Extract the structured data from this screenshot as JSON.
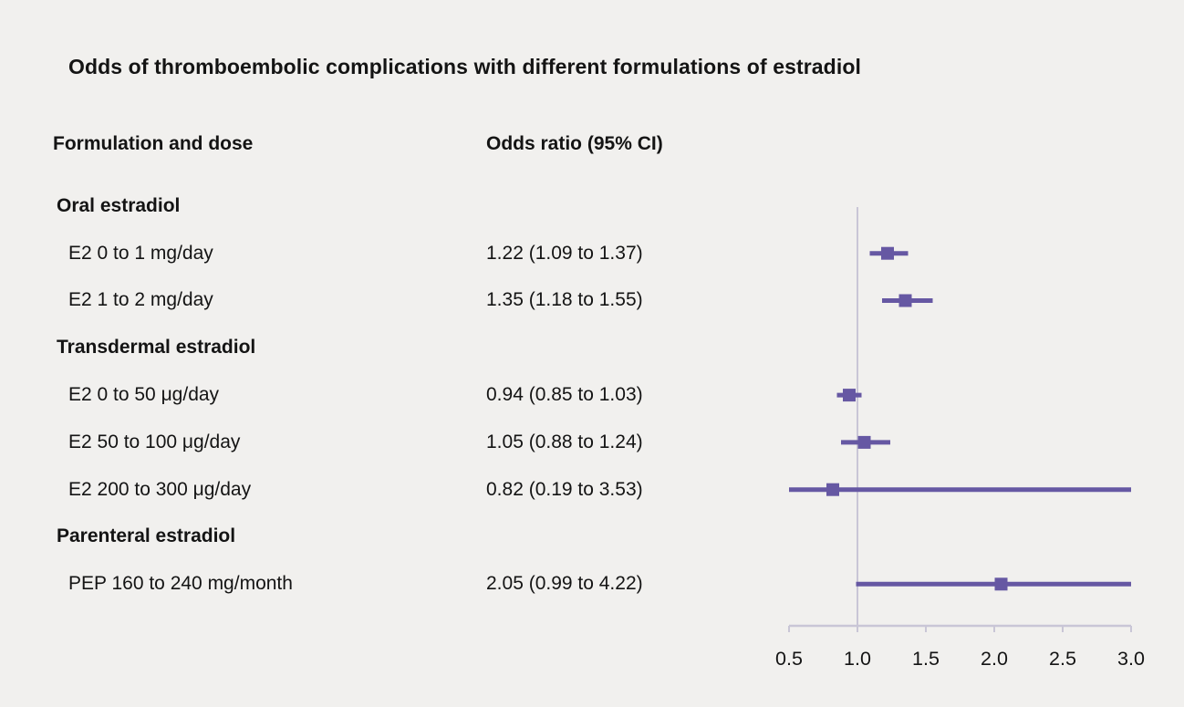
{
  "title": "Odds of thromboembolic complications with different formulations of estradiol",
  "columns": {
    "formulation": "Formulation and dose",
    "odds_ratio": "Odds ratio (95% CI)"
  },
  "chart_data": {
    "type": "forest",
    "title": "Odds of thromboembolic complications with different formulations of estradiol",
    "xlabel": "Odds ratio (95% CI)",
    "xlim": [
      0.5,
      3.0
    ],
    "axis": {
      "min": 0.5,
      "max": 3.0,
      "reference": 1.0,
      "ticks": [
        0.5,
        1.0,
        1.5,
        2.0,
        2.5,
        3.0
      ],
      "tick_labels": [
        "0.5",
        "1.0",
        "1.5",
        "2.0",
        "2.5",
        "3.0"
      ]
    },
    "rows": [
      {
        "type": "group",
        "label": "Oral estradiol"
      },
      {
        "type": "item",
        "label": "E2 0 to 1 mg/day",
        "or_text": "1.22 (1.09 to 1.37)",
        "or": 1.22,
        "lo": 1.09,
        "hi": 1.37
      },
      {
        "type": "item",
        "label": "E2 1 to 2 mg/day",
        "or_text": "1.35 (1.18 to 1.55)",
        "or": 1.35,
        "lo": 1.18,
        "hi": 1.55
      },
      {
        "type": "group",
        "label": "Transdermal estradiol"
      },
      {
        "type": "item",
        "label": "E2 0 to 50 μg/day",
        "or_text": "0.94 (0.85 to 1.03)",
        "or": 0.94,
        "lo": 0.85,
        "hi": 1.03
      },
      {
        "type": "item",
        "label": "E2 50 to 100 μg/day",
        "or_text": "1.05 (0.88 to 1.24)",
        "or": 1.05,
        "lo": 0.88,
        "hi": 1.24
      },
      {
        "type": "item",
        "label": "E2 200 to 300 μg/day",
        "or_text": "0.82 (0.19 to 3.53)",
        "or": 0.82,
        "lo": 0.19,
        "hi": 3.53
      },
      {
        "type": "group",
        "label": "Parenteral estradiol"
      },
      {
        "type": "item",
        "label": "PEP 160 to 240 mg/month",
        "or_text": "2.05 (0.99 to 4.22)",
        "or": 2.05,
        "lo": 0.99,
        "hi": 4.22
      }
    ],
    "colors": {
      "marker": "#6658a3",
      "ci_line": "#6658a3",
      "grid_line": "#c9c6d6",
      "background": "#f1f0ee",
      "text": "#141414"
    },
    "legend": "none",
    "grid": "reference line at 1.0 only"
  }
}
